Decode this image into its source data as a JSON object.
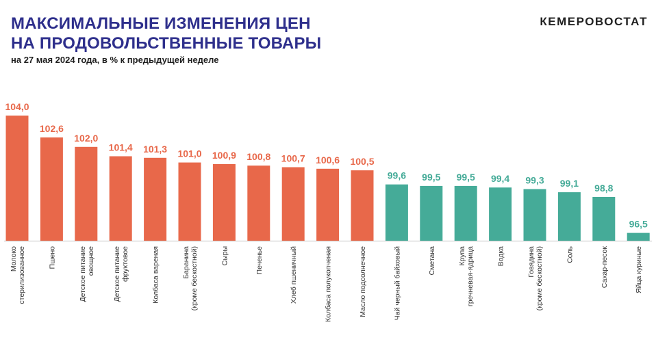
{
  "header": {
    "title_line1": "МАКСИМАЛЬНЫЕ ИЗМЕНЕНИЯ ЦЕН",
    "title_line2": "НА ПРОДОВОЛЬСТВЕННЫЕ ТОВАРЫ",
    "subtitle": "на 27 мая 2024 года, в % к предыдущей неделе",
    "brand": "КЕМЕРОВОСТАТ"
  },
  "chart_data": {
    "type": "bar",
    "categories": [
      [
        "Молоко",
        "стерилизованное"
      ],
      [
        "Пшено"
      ],
      [
        "Детское питание",
        "овощное"
      ],
      [
        "Детское питание",
        "фруктовое"
      ],
      [
        "Колбаса вареная"
      ],
      [
        "Баранина",
        "(кроме бескостной)"
      ],
      [
        "Сыры"
      ],
      [
        "Печенье"
      ],
      [
        "Хлеб пшеничный"
      ],
      [
        "Колбаса полукопченая"
      ],
      [
        "Масло подсолнечное"
      ],
      [
        "Чай черный байховый"
      ],
      [
        "Сметана"
      ],
      [
        "Крупа",
        "гречневая-ядрица"
      ],
      [
        "Водка"
      ],
      [
        "Говядина",
        "(кроме бескостной)"
      ],
      [
        "Соль"
      ],
      [
        "Сахар-песок"
      ],
      [
        "Яйца куриные"
      ]
    ],
    "values": [
      104.0,
      102.6,
      102.0,
      101.4,
      101.3,
      101.0,
      100.9,
      100.8,
      100.7,
      100.6,
      100.5,
      99.6,
      99.5,
      99.5,
      99.4,
      99.3,
      99.1,
      98.8,
      96.5
    ],
    "value_labels": [
      "104,0",
      "102,6",
      "102,0",
      "101,4",
      "101,3",
      "101,0",
      "100,9",
      "100,8",
      "100,7",
      "100,6",
      "100,5",
      "99,6",
      "99,5",
      "99,5",
      "99,4",
      "99,3",
      "99,1",
      "98,8",
      "96,5"
    ],
    "ylim": [
      96.0,
      104.0
    ],
    "grid": false,
    "colors": {
      "increase": "#e8684a",
      "decrease": "#45ab98",
      "axis": "#bfbfbf"
    }
  }
}
